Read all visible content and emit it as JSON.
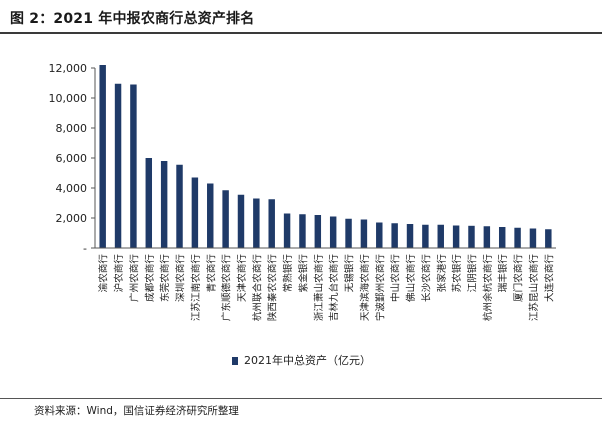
{
  "title": "图 2：2021 年中报农商行总资产排名",
  "source": "资料来源：Wind，国信证券经济研究所整理",
  "chart_data": {
    "type": "bar",
    "title": "图 2：2021 年中报农商行总资产排名",
    "xlabel": "",
    "ylabel": "",
    "ylim": [
      0,
      12000
    ],
    "yticks": [
      0,
      2000,
      4000,
      6000,
      8000,
      10000,
      12000
    ],
    "ytick_labels": [
      "-",
      "2,000",
      "4,000",
      "6,000",
      "8,000",
      "10,000",
      "12,000"
    ],
    "grid": false,
    "legend_position": "bottom",
    "bar_color": "#1f3a68",
    "categories": [
      "渝农商行",
      "沪农商行",
      "广州农商行",
      "成都农商行",
      "东莞农商行",
      "深圳农商行",
      "江苏江南农商行",
      "青农商行",
      "广东顺德农商行",
      "天津农商行",
      "杭州联合农商行",
      "陕西秦农农商行",
      "常熟银行",
      "紫金银行",
      "浙江萧山农商行",
      "吉林九台农商行",
      "无锡银行",
      "天津滨海农商行",
      "宁波鄞州农商行",
      "中山农商行",
      "佛山农商行",
      "长沙农商行",
      "张家港行",
      "苏农银行",
      "江阴银行",
      "杭州余杭农商行",
      "瑞丰银行",
      "厦门农商行",
      "江苏昆山农商行",
      "大连农商行"
    ],
    "series": [
      {
        "name": "2021年中总资产（亿元）",
        "values": [
          12200,
          10950,
          10900,
          6000,
          5800,
          5550,
          4700,
          4300,
          3850,
          3550,
          3300,
          3250,
          2300,
          2250,
          2200,
          2100,
          1950,
          1900,
          1700,
          1650,
          1600,
          1550,
          1550,
          1500,
          1480,
          1450,
          1400,
          1350,
          1300,
          1250
        ]
      }
    ]
  }
}
